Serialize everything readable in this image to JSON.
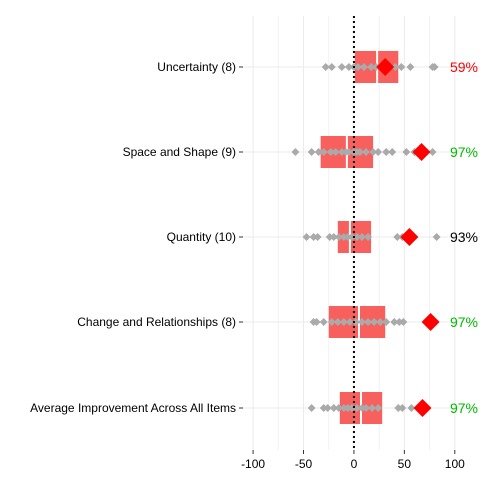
{
  "chart_data": {
    "type": "box",
    "xlim": [
      -110,
      125
    ],
    "x_ticks": [
      -100,
      -50,
      0,
      50,
      100
    ],
    "x_tick_labels": [
      "-100",
      "-50",
      "0",
      "50",
      "100"
    ],
    "reference_line": 0,
    "grid": true,
    "categories": [
      "Uncertainty (8)",
      "Space and Shape (9)",
      "Quantity (10)",
      "Change and Relationships (8)",
      "Average Improvement Across All Items"
    ],
    "boxes": [
      {
        "q1": 1,
        "median": 23,
        "q3": 44
      },
      {
        "q1": -33,
        "median": -7,
        "q3": 19
      },
      {
        "q1": -16,
        "median": -4,
        "q3": 17
      },
      {
        "q1": -25,
        "median": 5,
        "q3": 31
      },
      {
        "q1": -14,
        "median": 7,
        "q3": 28
      }
    ],
    "points": [
      [
        -28,
        -22,
        -12,
        -5,
        0,
        4,
        10,
        17,
        22,
        28,
        35,
        41,
        47,
        56,
        78,
        80
      ],
      [
        -58,
        -42,
        -35,
        -30,
        -23,
        -18,
        -12,
        -8,
        -5,
        0,
        3,
        6,
        12,
        19,
        24,
        32,
        38,
        52,
        60,
        78
      ],
      [
        -47,
        -40,
        -36,
        -24,
        -20,
        -15,
        -10,
        -6,
        -2,
        3,
        8,
        14,
        43,
        48,
        52,
        82
      ],
      [
        -40,
        -37,
        -30,
        -22,
        -16,
        -10,
        -4,
        2,
        8,
        14,
        20,
        26,
        32,
        40,
        45,
        49
      ],
      [
        -42,
        -30,
        -26,
        -20,
        -15,
        -10,
        -6,
        -2,
        3,
        8,
        12,
        18,
        24,
        44,
        48,
        57
      ]
    ],
    "means": [
      31,
      67,
      55,
      76,
      68
    ],
    "percent_labels": [
      "59%",
      "97%",
      "93%",
      "97%",
      "97%"
    ],
    "percent_colors": [
      "#ff0000",
      "#00bb00",
      "#000000",
      "#00bb00",
      "#00bb00"
    ],
    "box_color": "#f8605e",
    "point_color": "#aaaaaa",
    "mean_color": "#ff0000"
  }
}
